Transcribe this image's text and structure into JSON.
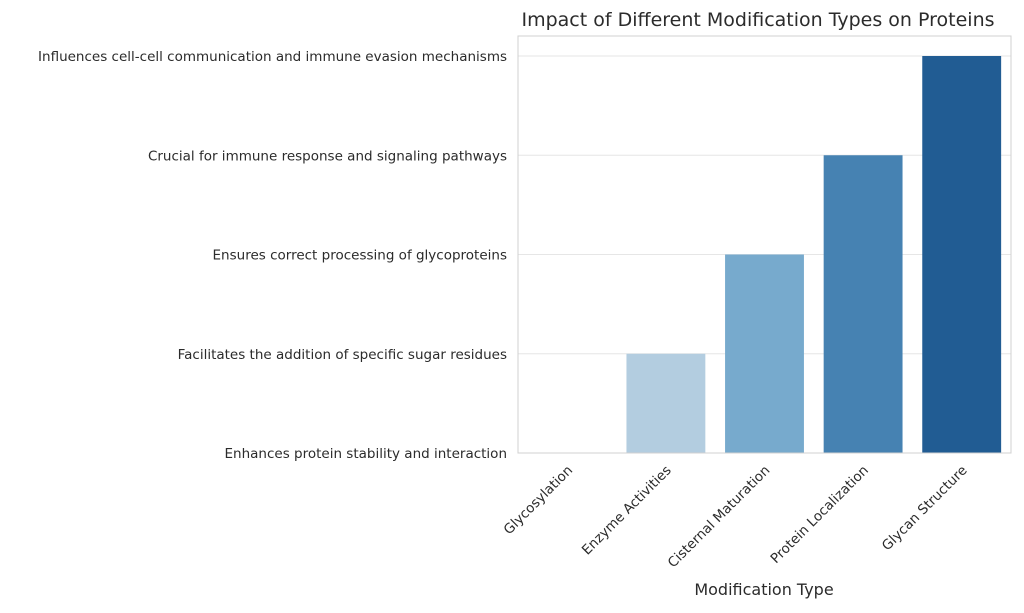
{
  "chart_data": {
    "type": "bar",
    "title": "Impact of Different Modification Types on Proteins",
    "xlabel": "Modification Type",
    "ylabel": "",
    "categories": [
      "Glycosylation",
      "Enzyme Activities",
      "Cisternal Maturation",
      "Protein Localization",
      "Glycan Structure"
    ],
    "values": [
      0,
      1,
      2,
      3,
      4
    ],
    "y_tick_labels": [
      "Enhances protein stability and interaction",
      "Facilitates the addition of specific sugar residues",
      "Ensures correct processing of glycoproteins",
      "Crucial for immune response and signaling pathways",
      "Influences cell-cell communication and immune evasion mechanisms"
    ],
    "ylim": [
      0,
      4
    ],
    "grid": true,
    "colors": [
      "#d5e5f1",
      "#b3cde0",
      "#77aacd",
      "#4682b2",
      "#215c93"
    ]
  }
}
